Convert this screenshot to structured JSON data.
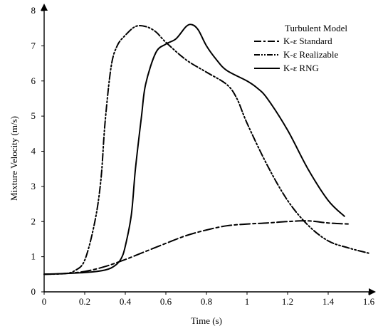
{
  "chart_data": {
    "type": "line",
    "xlabel": "Time (s)",
    "ylabel": "Mixture Velocity (m/s)",
    "xlim": [
      0,
      1.6
    ],
    "ylim": [
      0,
      8
    ],
    "x_ticks": [
      {
        "value": 0,
        "label": "0"
      },
      {
        "value": 0.2,
        "label": "0.2"
      },
      {
        "value": 0.4,
        "label": "0.4"
      },
      {
        "value": 0.6,
        "label": "0.6"
      },
      {
        "value": 0.8,
        "label": "0.8"
      },
      {
        "value": 1.0,
        "label": "1"
      },
      {
        "value": 1.2,
        "label": "1.2"
      },
      {
        "value": 1.4,
        "label": "1.4"
      },
      {
        "value": 1.6,
        "label": "1.6"
      }
    ],
    "y_ticks": [
      {
        "value": 0,
        "label": "0"
      },
      {
        "value": 1,
        "label": "1"
      },
      {
        "value": 2,
        "label": "2"
      },
      {
        "value": 3,
        "label": "3"
      },
      {
        "value": 4,
        "label": "4"
      },
      {
        "value": 5,
        "label": "5"
      },
      {
        "value": 6,
        "label": "6"
      },
      {
        "value": 7,
        "label": "7"
      },
      {
        "value": 8,
        "label": "8"
      }
    ],
    "grid": false,
    "legend": {
      "title": "Turbulent Model",
      "placement": "top-right"
    },
    "series": [
      {
        "name": "K-ε Standard",
        "dash": "dash",
        "x": [
          0,
          0.1,
          0.2,
          0.3,
          0.4,
          0.5,
          0.6,
          0.7,
          0.8,
          0.9,
          1.0,
          1.1,
          1.2,
          1.3,
          1.4,
          1.5
        ],
        "y": [
          0.5,
          0.52,
          0.58,
          0.72,
          0.92,
          1.15,
          1.38,
          1.6,
          1.76,
          1.88,
          1.93,
          1.96,
          2.0,
          2.02,
          1.96,
          1.93
        ]
      },
      {
        "name": "K-ε Realizable",
        "dash": "dash-dot-dot",
        "x": [
          0,
          0.1,
          0.15,
          0.2,
          0.25,
          0.28,
          0.3,
          0.33,
          0.36,
          0.4,
          0.45,
          0.5,
          0.55,
          0.6,
          0.7,
          0.8,
          0.9,
          0.95,
          1.0,
          1.1,
          1.2,
          1.3,
          1.4,
          1.5,
          1.6
        ],
        "y": [
          0.5,
          0.52,
          0.6,
          0.9,
          2.0,
          3.2,
          4.8,
          6.4,
          7.0,
          7.3,
          7.55,
          7.55,
          7.4,
          7.1,
          6.6,
          6.25,
          5.9,
          5.5,
          4.8,
          3.6,
          2.6,
          1.9,
          1.45,
          1.25,
          1.1
        ]
      },
      {
        "name": "K-ε RNG",
        "dash": "solid",
        "x": [
          0,
          0.2,
          0.3,
          0.35,
          0.38,
          0.4,
          0.43,
          0.45,
          0.48,
          0.5,
          0.55,
          0.6,
          0.65,
          0.7,
          0.73,
          0.76,
          0.8,
          0.85,
          0.9,
          1.0,
          1.05,
          1.1,
          1.2,
          1.3,
          1.4,
          1.48
        ],
        "y": [
          0.5,
          0.55,
          0.62,
          0.75,
          0.95,
          1.3,
          2.2,
          3.5,
          5.0,
          5.9,
          6.8,
          7.05,
          7.2,
          7.55,
          7.6,
          7.45,
          7.0,
          6.6,
          6.3,
          6.0,
          5.8,
          5.5,
          4.6,
          3.5,
          2.6,
          2.15
        ]
      }
    ]
  }
}
